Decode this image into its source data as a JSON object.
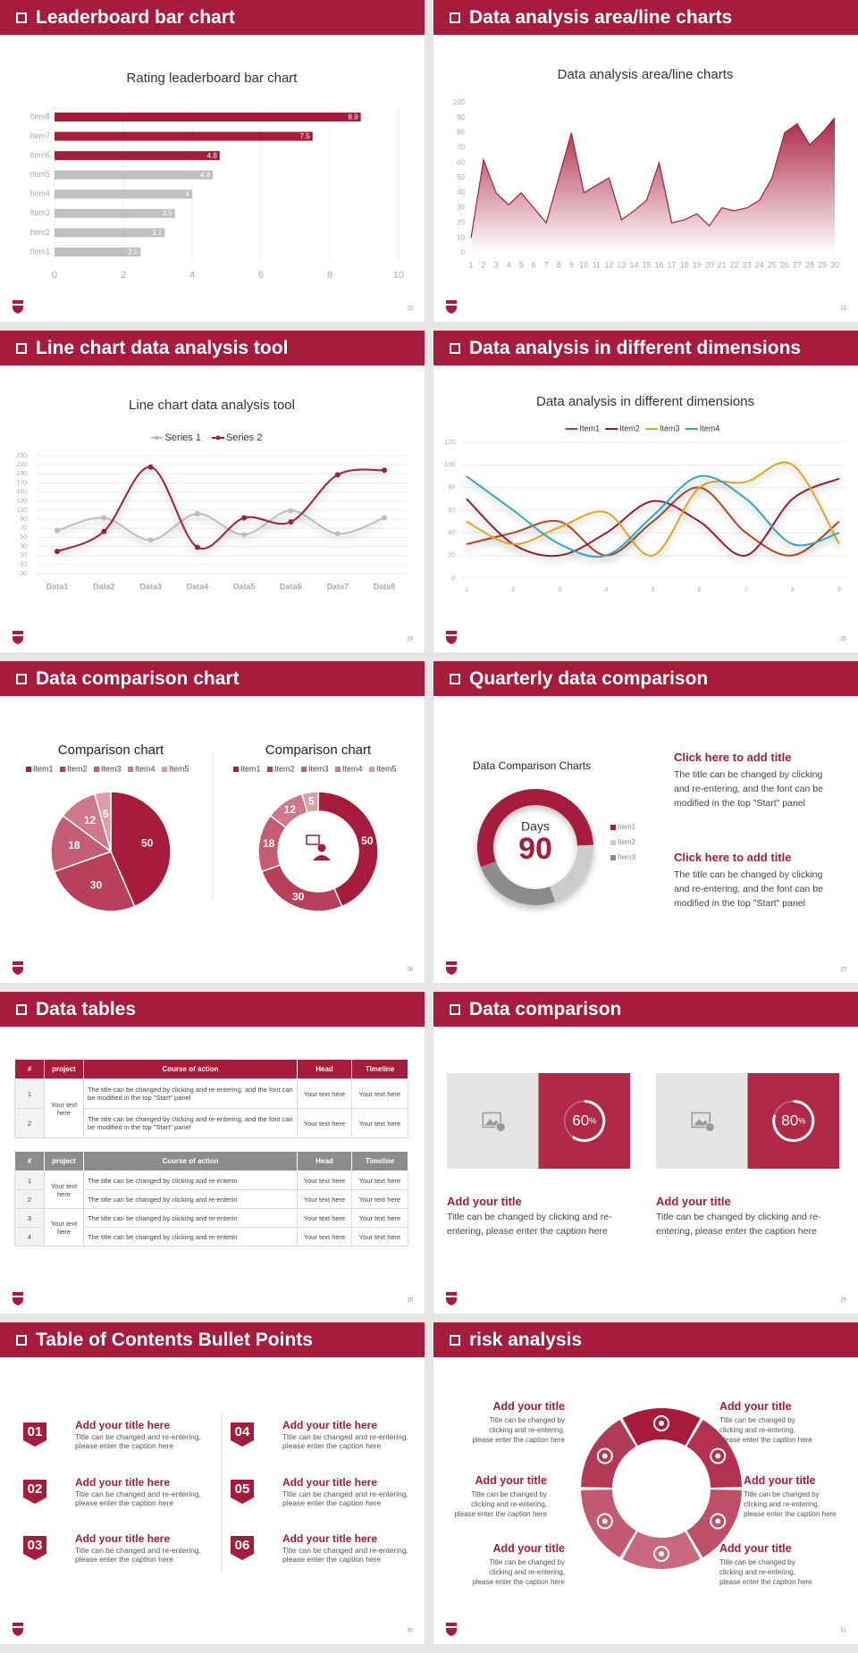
{
  "slides": [
    {
      "header": "Leaderboard bar chart",
      "page": "22"
    },
    {
      "header": "Data analysis area/line charts",
      "page": "23"
    },
    {
      "header": "Line chart data analysis tool",
      "page": "24"
    },
    {
      "header": "Data analysis in different dimensions",
      "page": "25"
    },
    {
      "header": "Data comparison chart",
      "page": "26"
    },
    {
      "header": "Quarterly data comparison",
      "page": "27"
    },
    {
      "header": "Data tables",
      "page": "28"
    },
    {
      "header": "Data comparison",
      "page": "29"
    },
    {
      "header": "Table of Contents Bullet Points",
      "page": "30"
    },
    {
      "header": "risk analysis",
      "page": "31"
    }
  ],
  "chart_data": [
    {
      "type": "bar",
      "title": "Rating leaderboard bar chart",
      "categories": [
        "Item1",
        "Item2",
        "Item3",
        "Item4",
        "Item5",
        "Item6",
        "Item7",
        "Item8"
      ],
      "values": [
        2.5,
        3.2,
        3.5,
        4,
        4.6,
        4.8,
        7.5,
        8.9
      ],
      "colors": [
        "#bfbfbf",
        "#bfbfbf",
        "#bfbfbf",
        "#bfbfbf",
        "#bfbfbf",
        "#a71c3b",
        "#a71c3b",
        "#a71c3b"
      ],
      "xlim": [
        0,
        10
      ],
      "xticks": [
        0,
        2,
        4,
        6,
        8,
        10
      ],
      "grid": true
    },
    {
      "type": "area",
      "title": "Data analysis area/line charts",
      "x": [
        1,
        2,
        3,
        4,
        5,
        6,
        7,
        8,
        9,
        10,
        11,
        12,
        13,
        14,
        15,
        16,
        17,
        18,
        19,
        20,
        21,
        22,
        23,
        24,
        25,
        26,
        27,
        28,
        29,
        30
      ],
      "values": [
        10,
        62,
        40,
        32,
        40,
        30,
        20,
        50,
        80,
        40,
        45,
        50,
        22,
        28,
        35,
        60,
        20,
        22,
        26,
        18,
        30,
        28,
        30,
        35,
        50,
        80,
        86,
        72,
        80,
        90
      ],
      "color": "#a71c3b",
      "xlim": [
        1,
        30
      ],
      "xticks": [
        1,
        2,
        3,
        4,
        5,
        6,
        7,
        8,
        9,
        10,
        11,
        12,
        13,
        14,
        15,
        16,
        17,
        18,
        19,
        20,
        21,
        22,
        23,
        24,
        25,
        26,
        27,
        28,
        29,
        30
      ],
      "ylim": [
        0,
        100
      ],
      "yticks": [
        0,
        10,
        20,
        30,
        40,
        50,
        60,
        70,
        80,
        90,
        100
      ]
    },
    {
      "type": "line",
      "smooth": true,
      "title": "Line chart data analysis tool",
      "categories": [
        "Data1",
        "Data2",
        "Data3",
        "Data4",
        "Data5",
        "Data6",
        "Data7",
        "Data8"
      ],
      "series": [
        {
          "name": "Series 1",
          "color": "#bdbdbd",
          "values": [
            65,
            93,
            44,
            102,
            56,
            109,
            58,
            93
          ]
        },
        {
          "name": "Series 2",
          "color": "#a71c3b",
          "values": [
            19,
            63,
            205,
            28,
            93,
            84,
            188,
            198
          ]
        }
      ],
      "ylim": [
        -30,
        230
      ],
      "yticks": [
        -30,
        -10,
        10,
        30,
        50,
        70,
        90,
        110,
        130,
        150,
        170,
        190,
        210,
        230
      ],
      "grid": true,
      "legend": "top"
    },
    {
      "type": "line",
      "smooth": true,
      "title": "Data analysis in different dimensions",
      "x": [
        1,
        2,
        3,
        4,
        5,
        6,
        7,
        8,
        9
      ],
      "series": [
        {
          "name": "Item1",
          "color": "#b8441a",
          "values": [
            30,
            40,
            50,
            20,
            50,
            80,
            40,
            20,
            50
          ]
        },
        {
          "name": "Item2",
          "color": "#9b1b34",
          "values": [
            70,
            30,
            20,
            40,
            68,
            50,
            20,
            70,
            88
          ]
        },
        {
          "name": "Item3",
          "color": "#e8a31f",
          "values": [
            50,
            30,
            45,
            58,
            20,
            80,
            85,
            100,
            30
          ]
        },
        {
          "name": "Item4",
          "color": "#2ea7c6",
          "values": [
            90,
            60,
            30,
            20,
            55,
            90,
            70,
            30,
            40
          ]
        }
      ],
      "xlim": [
        1,
        9
      ],
      "xticks": [
        1,
        2,
        3,
        4,
        5,
        6,
        7,
        8,
        9
      ],
      "ylim": [
        0,
        120
      ],
      "yticks": [
        0,
        20,
        40,
        60,
        80,
        100,
        120
      ],
      "grid": true,
      "legend": "top"
    },
    {
      "type": "pie",
      "title": "Comparison chart",
      "categories": [
        "Item1",
        "Item2",
        "Item3",
        "Item4",
        "Item5"
      ],
      "values": [
        50,
        30,
        18,
        12,
        5
      ],
      "colors": [
        "#a71c3b",
        "#b8405a",
        "#c45c74",
        "#cf788c",
        "#dc9eac"
      ],
      "legend": "top"
    },
    {
      "type": "donut",
      "title": "Comparison chart",
      "categories": [
        "Item1",
        "Item2",
        "Item3",
        "Item4",
        "Item5"
      ],
      "values": [
        50,
        30,
        18,
        12,
        5
      ],
      "colors": [
        "#a71c3b",
        "#b8405a",
        "#c45c74",
        "#cf788c",
        "#dc9eac"
      ],
      "legend": "top"
    },
    {
      "type": "donut",
      "title": "Data Comparison Charts",
      "center_label": "Days",
      "center_value": 90,
      "categories": [
        "Item1",
        "Item2",
        "Item3"
      ],
      "values": [
        55,
        20,
        25
      ],
      "colors": [
        "#a71c3b",
        "#cccccc",
        "#8c8c8c"
      ],
      "legend": "right"
    }
  ],
  "quarterly": [
    {
      "title": "Click here to add title",
      "text": "The title can be changed by clicking and re-entering, and the font can be modified in the top \"Start\" panel"
    },
    {
      "title": "Click here to add title",
      "text": "The title can be changed by clicking and re-entering, and the font can be modified in the top \"Start\" panel"
    }
  ],
  "tables": [
    {
      "header_color": "#a71c3b",
      "columns": [
        "#",
        "project",
        "Course of action",
        "Head",
        "Timeline"
      ],
      "groups": [
        {
          "project": "Your text here",
          "rows": [
            [
              "1",
              "The title can be changed by clicking and re-entering, and the font can be modified in the top \"Start\" panel",
              "Your text here",
              "Your text here"
            ],
            [
              "2",
              "The title can be changed by clicking and re-entering, and the font can be modified in the top \"Start\" panel",
              "Your text here",
              "Your text here"
            ]
          ]
        }
      ]
    },
    {
      "header_color": "#8c8c8c",
      "columns": [
        "#",
        "project",
        "Course of action",
        "Head",
        "Timeline"
      ],
      "groups": [
        {
          "project": "Your text here",
          "rows": [
            [
              "1",
              "The title can be changed by clicking and re-enterin",
              "Your text here",
              "Your text here"
            ],
            [
              "2",
              "The title can be changed by clicking and re-enterin",
              "Your text here",
              "Your text here"
            ]
          ]
        },
        {
          "project": "Your text here",
          "rows": [
            [
              "3",
              "The title can be changed by clicking and re-enterin",
              "Your text here",
              "Your text here"
            ],
            [
              "4",
              "The title can be changed by clicking and re-enterin",
              "Your text here",
              "Your text here"
            ]
          ]
        }
      ]
    }
  ],
  "cards": [
    {
      "value": 60,
      "unit": "%",
      "title": "Add your title",
      "text": "Title can be changed by clicking and re-entering, please enter the caption here"
    },
    {
      "value": 80,
      "unit": "%",
      "title": "Add your title",
      "text": "Title can be changed by clicking and re-entering, please enter the caption here"
    }
  ],
  "toc": [
    {
      "number": "01",
      "title": "Add your title here",
      "text": "Title can be changed and re-entering, please enter the caption here"
    },
    {
      "number": "02",
      "title": "Add your title here",
      "text": "Title can be changed and re-entering, please enter the caption here"
    },
    {
      "number": "03",
      "title": "Add your title here",
      "text": "Title can be changed and re-entering, please enter the caption here"
    },
    {
      "number": "04",
      "title": "Add your title here",
      "text": "Title can be changed and re-entering, please enter the caption here"
    },
    {
      "number": "05",
      "title": "Add your title here",
      "text": "Title can be changed and re-entering, please enter the caption here"
    },
    {
      "number": "06",
      "title": "Add your title here",
      "text": "Title can be changed and re-entering, please enter the caption here"
    }
  ],
  "risks": [
    {
      "title": "Add your title",
      "text": "Title can be changed by clicking and re-entering, please enter the caption here"
    },
    {
      "title": "Add your title",
      "text": "Title can be changed by clicking and re-entering, please enter the caption here"
    },
    {
      "title": "Add your title",
      "text": "Title can be changed by clicking and re-entering, please enter the caption here"
    },
    {
      "title": "Add your title",
      "text": "Title can be changed by clicking and re-entering, please enter the caption here"
    },
    {
      "title": "Add your title",
      "text": "Title can be changed by clicking and re-entering, please enter the caption here"
    },
    {
      "title": "Add your title",
      "text": "Title can be changed by clicking and re-entering, please enter the caption here"
    }
  ]
}
